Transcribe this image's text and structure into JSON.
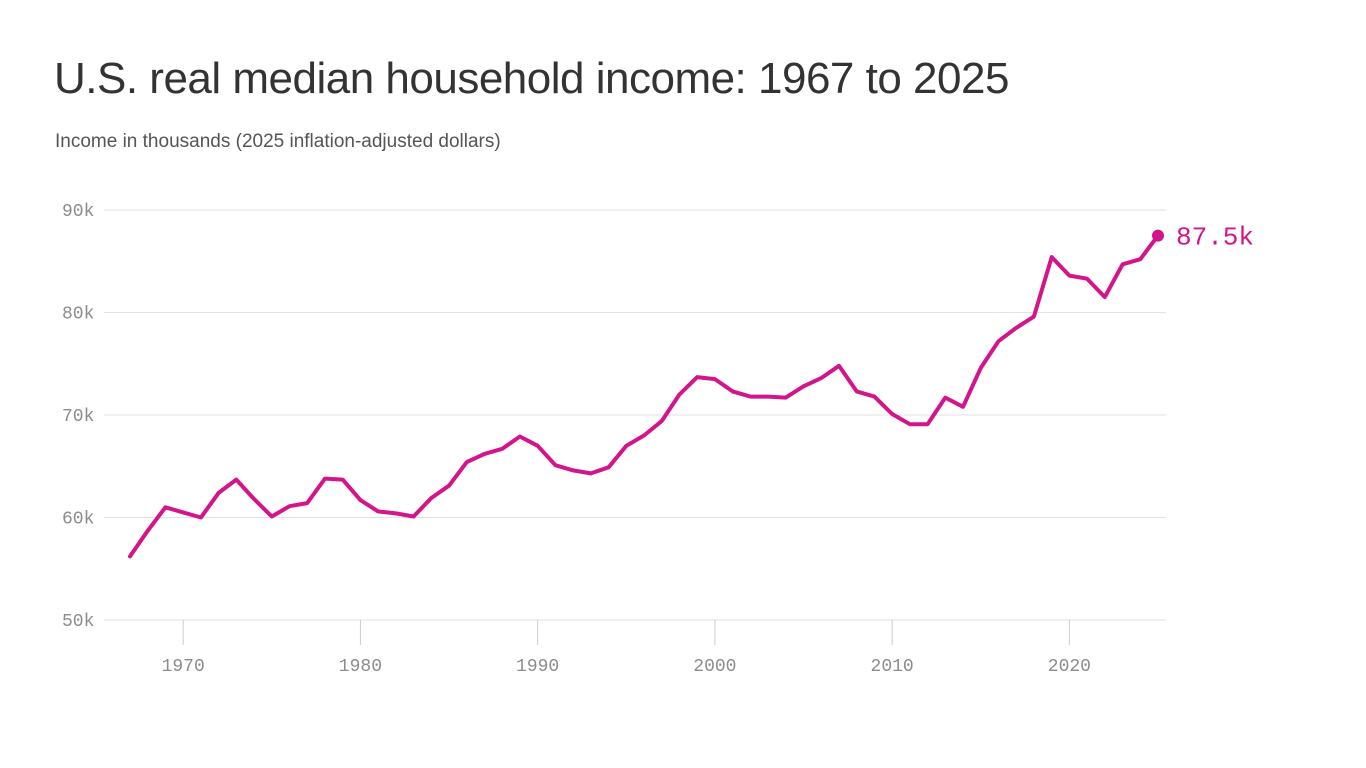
{
  "colors": {
    "accent": "#d4148a",
    "grid": "#e2e2e2",
    "axis": "#cccccc",
    "tick_text": "#8c8c8c",
    "title_text": "#333333"
  },
  "chart_data": {
    "type": "line",
    "title": "U.S. real median household income: 1967 to 2025",
    "subtitle": "Income in thousands (2025 inflation-adjusted dollars)",
    "xlabel": "",
    "ylabel": "",
    "xlim": [
      1966.5,
      2025.5
    ],
    "ylim": [
      50,
      90
    ],
    "grid": true,
    "y_ticks": [
      50,
      60,
      70,
      80,
      90
    ],
    "y_tick_labels": [
      "50k",
      "60k",
      "70k",
      "80k",
      "90k"
    ],
    "x_ticks": [
      1970,
      1980,
      1990,
      2000,
      2010,
      2020
    ],
    "x_tick_labels": [
      "1970",
      "1980",
      "1990",
      "2000",
      "2010",
      "2020"
    ],
    "series": [
      {
        "color": "#d4148a",
        "x": [
          1967,
          1968,
          1969,
          1970,
          1971,
          1972,
          1973,
          1974,
          1975,
          1976,
          1977,
          1978,
          1979,
          1980,
          1981,
          1982,
          1983,
          1984,
          1985,
          1986,
          1987,
          1988,
          1989,
          1990,
          1991,
          1992,
          1993,
          1994,
          1995,
          1996,
          1997,
          1998,
          1999,
          2000,
          2001,
          2002,
          2003,
          2004,
          2005,
          2006,
          2007,
          2008,
          2009,
          2010,
          2011,
          2012,
          2013,
          2014,
          2015,
          2016,
          2017,
          2018,
          2019,
          2020,
          2021,
          2022,
          2023,
          2024,
          2025
        ],
        "y": [
          56.2,
          58.7,
          61.0,
          60.5,
          60.0,
          62.4,
          63.7,
          61.8,
          60.1,
          61.1,
          61.4,
          63.8,
          63.7,
          61.7,
          60.6,
          60.4,
          60.1,
          61.9,
          63.1,
          65.4,
          66.2,
          66.7,
          67.9,
          67.0,
          65.1,
          64.6,
          64.3,
          64.9,
          67.0,
          68.0,
          69.4,
          72.0,
          73.7,
          73.5,
          72.3,
          71.8,
          71.8,
          71.7,
          72.8,
          73.6,
          74.8,
          72.3,
          71.8,
          70.1,
          69.1,
          69.1,
          71.7,
          70.8,
          74.6,
          77.2,
          78.5,
          79.6,
          85.4,
          83.6,
          83.3,
          81.5,
          84.7,
          85.2,
          87.5
        ]
      }
    ],
    "end_label": "87.5k"
  }
}
